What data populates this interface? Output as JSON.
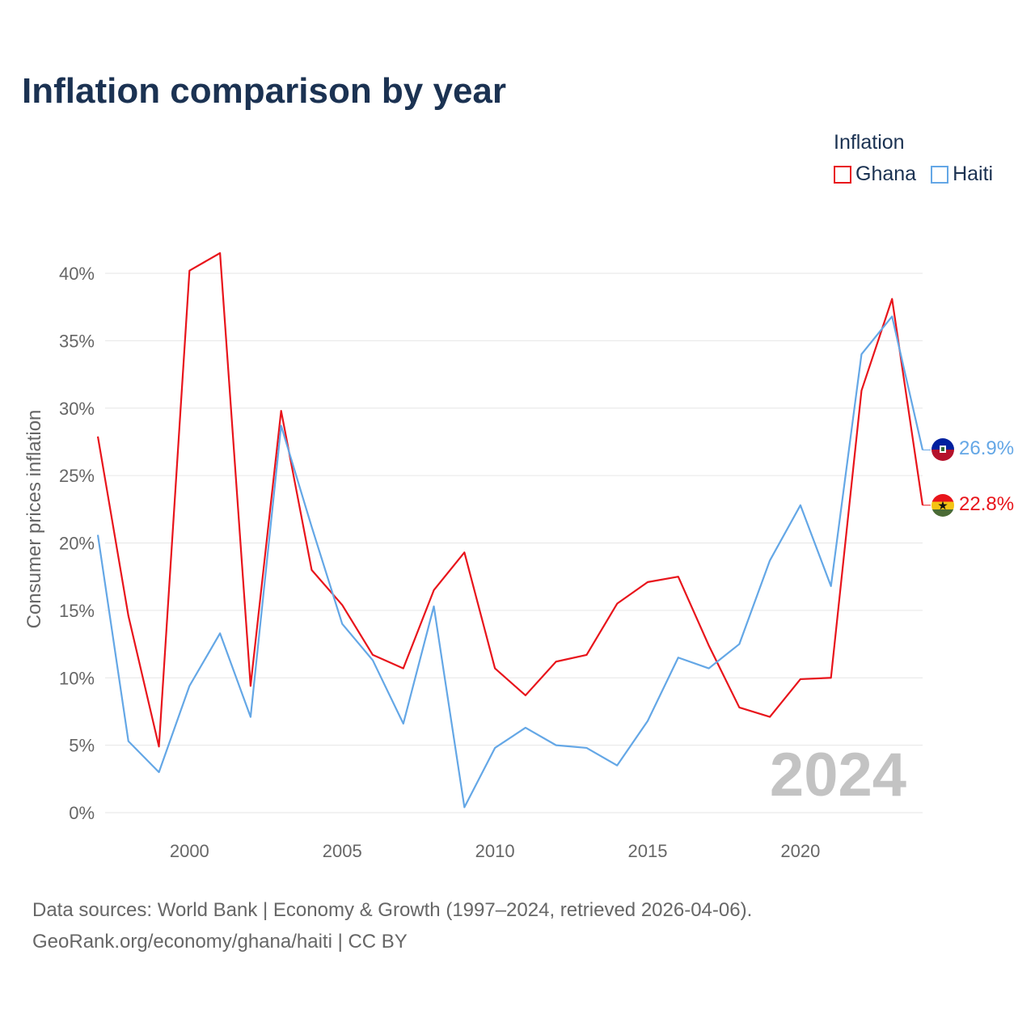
{
  "title": "Inflation comparison by year",
  "legend": {
    "title": "Inflation",
    "items": [
      {
        "label": "Ghana",
        "color": "#e8141b"
      },
      {
        "label": "Haiti",
        "color": "#64a7e6"
      }
    ]
  },
  "source": {
    "line1": "Data sources: World Bank | Economy & Growth (1997–2024, retrieved 2026-04-06).",
    "line2": "GeoRank.org/economy/ghana/haiti | CC BY"
  },
  "chart_data": {
    "type": "line",
    "title": "Inflation comparison by year",
    "xlabel": "",
    "ylabel": "Consumer prices inflation",
    "xlim": [
      1997,
      2024
    ],
    "ylim": [
      0,
      40
    ],
    "y_ticks": [
      0,
      5,
      10,
      15,
      20,
      25,
      30,
      35,
      40
    ],
    "y_tick_labels": [
      "0%",
      "5%",
      "10%",
      "15%",
      "20%",
      "25%",
      "30%",
      "35%",
      "40%"
    ],
    "x_ticks": [
      2000,
      2005,
      2010,
      2015,
      2020
    ],
    "x_tick_labels": [
      "2000",
      "2005",
      "2010",
      "2015",
      "2020"
    ],
    "grid": true,
    "legend_position": "top-right",
    "highlight_year": "2024",
    "x": [
      1997,
      1998,
      1999,
      2000,
      2001,
      2002,
      2003,
      2004,
      2005,
      2006,
      2007,
      2008,
      2009,
      2010,
      2011,
      2012,
      2013,
      2014,
      2015,
      2016,
      2017,
      2018,
      2019,
      2020,
      2021,
      2022,
      2023,
      2024
    ],
    "series": [
      {
        "name": "Ghana",
        "color": "#e8141b",
        "end_label": "22.8%",
        "flag": "ghana-flag",
        "values": [
          27.9,
          14.6,
          4.9,
          40.2,
          41.5,
          9.4,
          29.8,
          18.0,
          15.4,
          11.7,
          10.7,
          16.5,
          19.3,
          10.7,
          8.7,
          11.2,
          11.7,
          15.5,
          17.1,
          17.5,
          12.4,
          7.8,
          7.1,
          9.9,
          10.0,
          31.3,
          38.1,
          22.8
        ]
      },
      {
        "name": "Haiti",
        "color": "#64a7e6",
        "end_label": "26.9%",
        "flag": "haiti-flag",
        "values": [
          20.6,
          5.3,
          3.0,
          9.4,
          13.3,
          7.1,
          28.7,
          21.2,
          14.0,
          11.3,
          6.6,
          15.3,
          0.4,
          4.8,
          6.3,
          5.0,
          4.8,
          3.5,
          6.8,
          11.5,
          10.7,
          12.5,
          18.7,
          22.8,
          16.8,
          34.0,
          36.8,
          26.9
        ]
      }
    ]
  }
}
